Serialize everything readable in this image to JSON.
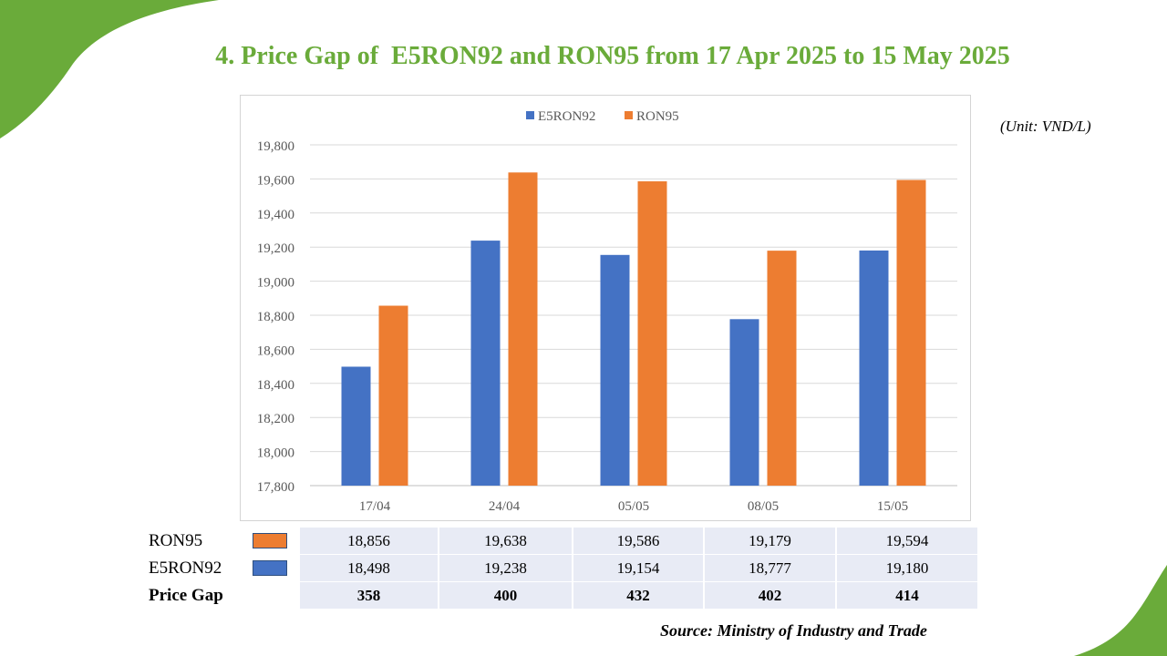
{
  "title": "4. Price Gap of  E5RON92 and RON95 from 17 Apr 2025 to 15 May 2025",
  "unit_note": "(Unit: VND/L)",
  "source": "Source: Ministry of Industry and Trade",
  "colors": {
    "e5ron92": "#4472c4",
    "ron95": "#ed7d31",
    "title_green": "#6aab3a",
    "leaf_green": "#6aab3a"
  },
  "chart_data": {
    "type": "bar",
    "categories": [
      "17/04",
      "24/04",
      "05/05",
      "08/05",
      "15/05"
    ],
    "series": [
      {
        "name": "E5RON92",
        "values": [
          18498,
          19238,
          19154,
          18777,
          19180
        ]
      },
      {
        "name": "RON95",
        "values": [
          18856,
          19638,
          19586,
          19179,
          19594
        ]
      }
    ],
    "ylim": [
      17800,
      19800
    ],
    "yticks": [
      "17,800",
      "18,000",
      "18,200",
      "18,400",
      "18,600",
      "18,800",
      "19,000",
      "19,200",
      "19,400",
      "19,600",
      "19,800"
    ],
    "legend": "top-center",
    "grid": true
  },
  "table": {
    "rows": [
      {
        "label": "RON95",
        "swatch": "#ed7d31",
        "values": [
          "18,856",
          "19,638",
          "19,586",
          "19,179",
          "19,594"
        ]
      },
      {
        "label": "E5RON92",
        "swatch": "#4472c4",
        "values": [
          "18,498",
          "19,238",
          "19,154",
          "18,777",
          "19,180"
        ]
      },
      {
        "label": "Price Gap",
        "values": [
          "358",
          "400",
          "432",
          "402",
          "414"
        ]
      }
    ]
  }
}
